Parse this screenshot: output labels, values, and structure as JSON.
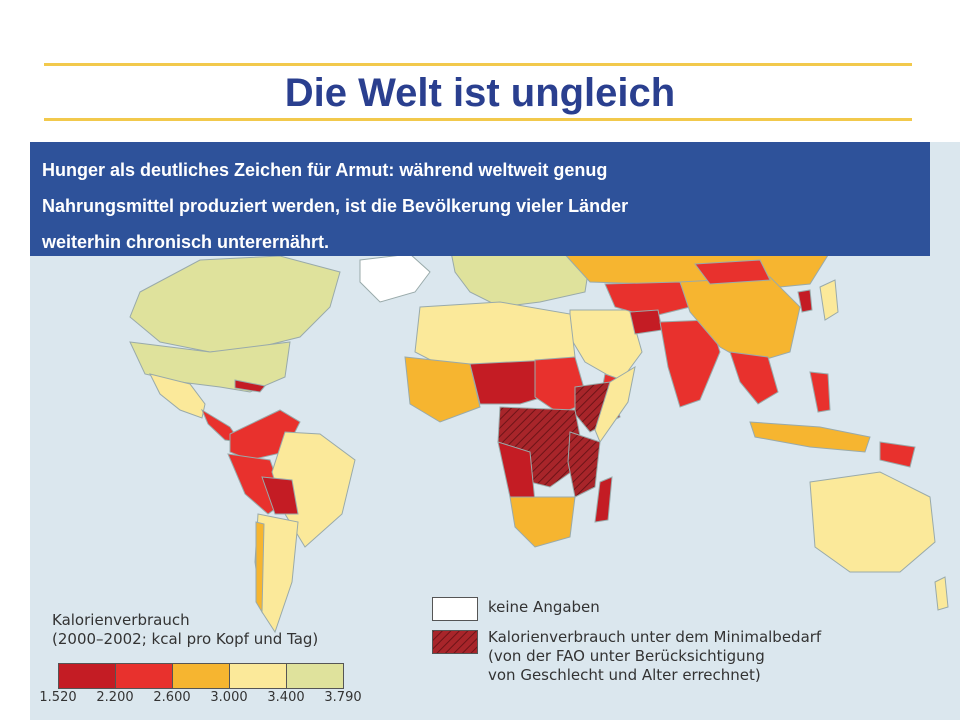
{
  "title": "Die Welt ist ungleich",
  "caption": {
    "lines": [
      "Hunger als deutliches Zeichen für Armut: während weltweit genug",
      "Nahrungsmittel produziert werden, ist die Bevölkerung vieler Länder",
      "weiterhin chronisch unterernährt."
    ]
  },
  "legend": {
    "title_lines": [
      "Kalorienverbrauch",
      "(2000–2002; kcal pro Kopf und Tag)"
    ],
    "thresholds": [
      "1.520",
      "2.200",
      "2.600",
      "3.000",
      "3.400",
      "3.790"
    ],
    "colors": [
      "#c41c24",
      "#e8312d",
      "#f6b530",
      "#fbe99a",
      "#dfe29c"
    ],
    "no_data_label": "keine Angaben",
    "below_min_lines": [
      "Kalorienverbrauch unter dem Minimalbedarf",
      "(von der FAO unter Berücksichtigung",
      "von Geschlecht und Alter errechnet)"
    ]
  },
  "map": {
    "ocean_color": "#dbe7ee",
    "hatch_color": "#8b1c20"
  }
}
